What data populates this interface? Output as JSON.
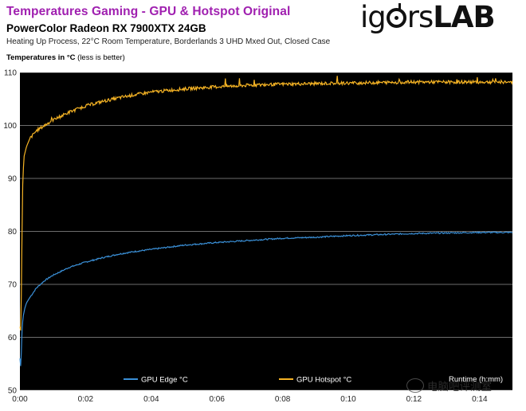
{
  "header": {
    "title": "Temperatures Gaming - GPU & Hotspot Original",
    "subtitle": "PowerColor  Radeon  RX 7900XTX 24GB",
    "description": "Heating Up Process, 22°C Room Temperature,  Borderlands 3 UHD Mxed Out, Closed Case",
    "ylabel_bold": "Temperatures in °C",
    "ylabel_note": " (less is better)"
  },
  "logo": {
    "part1": "ig",
    "part2": "rs",
    "part3": "LAB"
  },
  "watermark": {
    "text": "电脑吧评测室"
  },
  "colors": {
    "title": "#a020b0",
    "hotspot": "#f5b324",
    "edge": "#3a8fd6",
    "plot_bg": "#000000"
  },
  "chart_data": {
    "type": "line",
    "title": "Temperatures Gaming - GPU & Hotspot Original",
    "ylabel": "Temperatures in °C",
    "xlabel": "Runtime (h:mm)",
    "ylim": [
      50,
      110
    ],
    "yticks": [
      50,
      60,
      70,
      80,
      90,
      100,
      110
    ],
    "xlim_minutes": [
      0,
      15
    ],
    "xticks": [
      "0:00",
      "0:02",
      "0:04",
      "0:06",
      "0:08",
      "0:10",
      "0:12",
      "0:14"
    ],
    "grid": true,
    "legend_position": "bottom",
    "series": [
      {
        "name": "GPU Edge °C",
        "color": "#3a8fd6",
        "x_minutes": [
          0,
          0.03,
          0.05,
          0.07,
          0.1,
          0.15,
          0.2,
          0.3,
          0.5,
          0.75,
          1,
          1.5,
          2,
          2.5,
          3,
          3.5,
          4,
          5,
          6,
          7,
          8,
          9,
          10,
          11,
          12,
          13,
          14,
          15
        ],
        "values": [
          56,
          54,
          59,
          62,
          64,
          65.5,
          66.5,
          67.5,
          69.3,
          70.7,
          71.7,
          73.2,
          74.2,
          75,
          75.7,
          76.2,
          76.6,
          77.4,
          77.9,
          78.3,
          78.7,
          78.9,
          79.2,
          79.4,
          79.6,
          79.7,
          79.8,
          79.8
        ]
      },
      {
        "name": "GPU Hotspot  °C",
        "color": "#f5b324",
        "x_minutes": [
          0,
          0.03,
          0.05,
          0.08,
          0.12,
          0.2,
          0.3,
          0.5,
          0.75,
          1,
          1.5,
          2,
          2.5,
          3,
          3.5,
          4,
          5,
          6,
          7,
          8,
          9,
          10,
          11,
          12,
          13,
          14,
          15
        ],
        "values": [
          62,
          61,
          72,
          88,
          94,
          96,
          97.5,
          99,
          100,
          101,
          102.5,
          103.7,
          104.5,
          105.2,
          105.8,
          106.3,
          106.9,
          107.3,
          107.6,
          107.8,
          107.9,
          108,
          108.1,
          108.2,
          108.2,
          108.2,
          108.2
        ]
      }
    ],
    "annotations": [
      "Runtime (h:mm)"
    ]
  }
}
